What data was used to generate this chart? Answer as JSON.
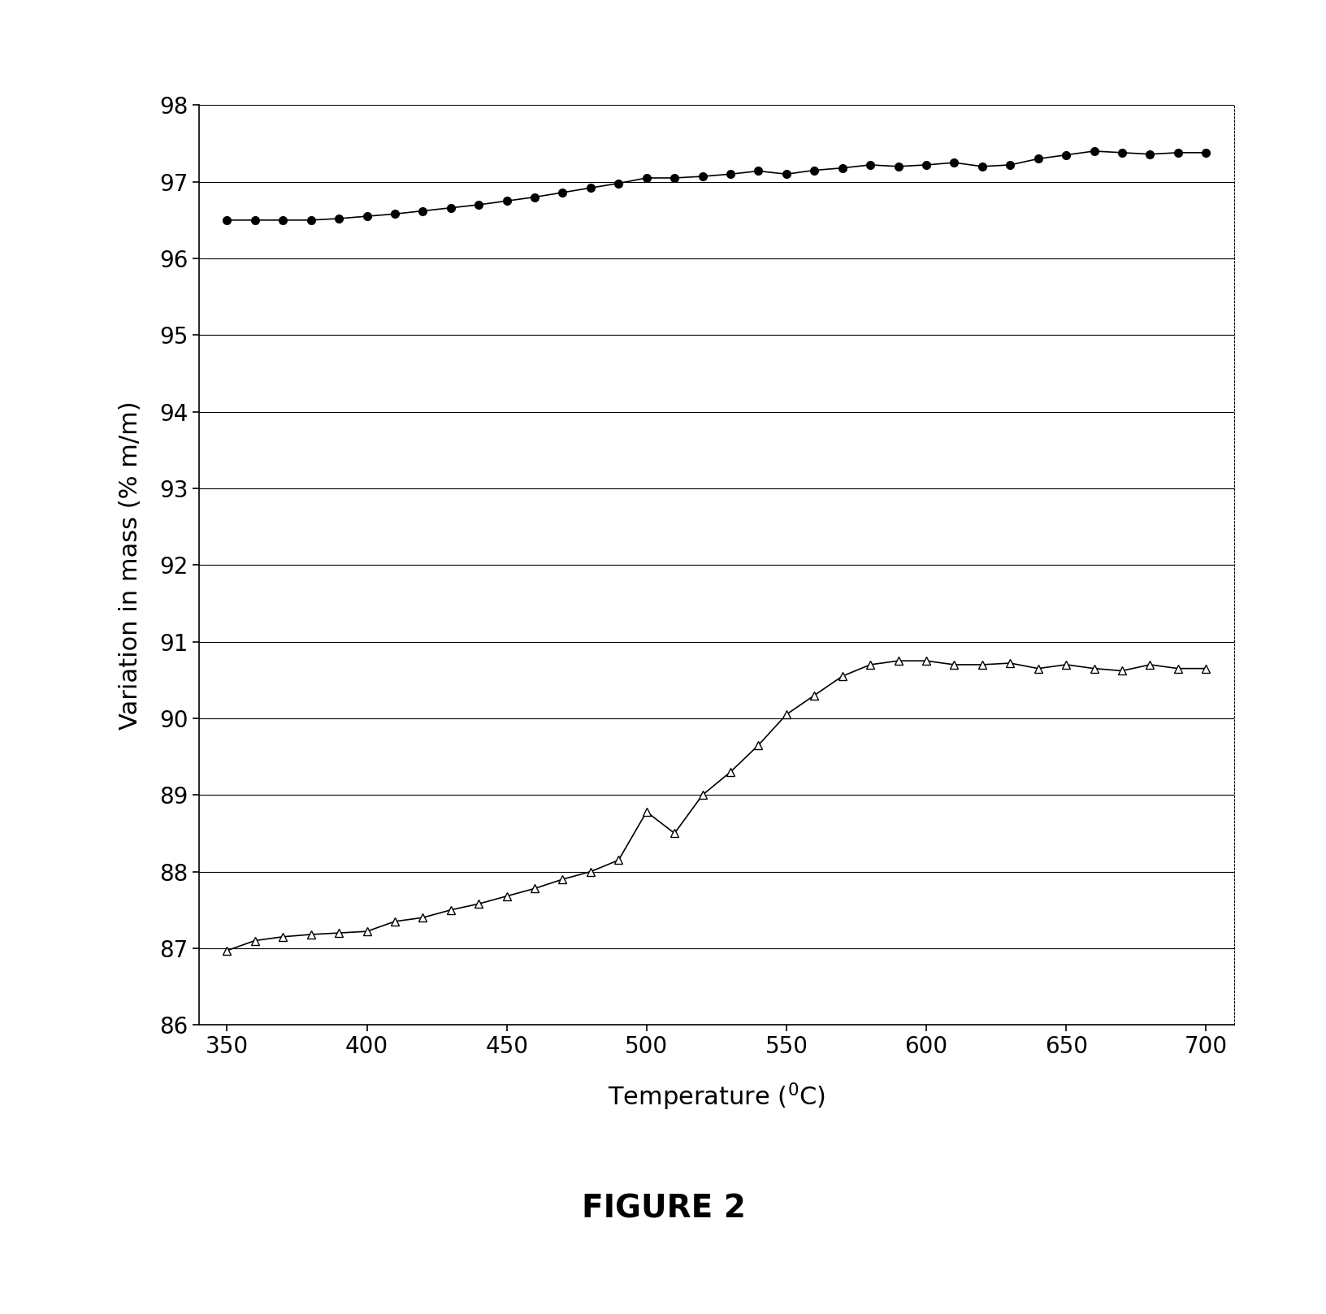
{
  "title": "FIGURE 2",
  "xlabel": "Temperature (°C)",
  "ylabel": "Variation in mass (% m/m)",
  "xlim": [
    340,
    710
  ],
  "ylim": [
    86,
    98
  ],
  "xticks": [
    350,
    400,
    450,
    500,
    550,
    600,
    650,
    700
  ],
  "yticks": [
    86,
    87,
    88,
    89,
    90,
    91,
    92,
    93,
    94,
    95,
    96,
    97,
    98
  ],
  "background_color": "#ffffff",
  "series1_x": [
    350,
    360,
    370,
    380,
    390,
    400,
    410,
    420,
    430,
    440,
    450,
    460,
    470,
    480,
    490,
    500,
    510,
    520,
    530,
    540,
    550,
    560,
    570,
    580,
    590,
    600,
    610,
    620,
    630,
    640,
    650,
    660,
    670,
    680,
    690,
    700
  ],
  "series1_y": [
    96.5,
    96.5,
    96.5,
    96.5,
    96.52,
    96.55,
    96.58,
    96.62,
    96.66,
    96.7,
    96.75,
    96.8,
    96.86,
    96.92,
    96.98,
    97.05,
    97.05,
    97.07,
    97.1,
    97.14,
    97.1,
    97.15,
    97.18,
    97.22,
    97.2,
    97.22,
    97.25,
    97.2,
    97.22,
    97.3,
    97.35,
    97.4,
    97.38,
    97.36,
    97.38,
    97.38
  ],
  "series2_x": [
    350,
    360,
    370,
    380,
    390,
    400,
    410,
    420,
    430,
    440,
    450,
    460,
    470,
    480,
    490,
    500,
    510,
    520,
    530,
    540,
    550,
    560,
    570,
    580,
    590,
    600,
    610,
    620,
    630,
    640,
    650,
    660,
    670,
    680,
    690,
    700
  ],
  "series2_y": [
    86.97,
    87.1,
    87.15,
    87.18,
    87.2,
    87.22,
    87.35,
    87.4,
    87.5,
    87.58,
    87.68,
    87.78,
    87.9,
    88.0,
    88.15,
    88.78,
    88.5,
    89.0,
    89.3,
    89.65,
    90.05,
    90.3,
    90.55,
    90.7,
    90.75,
    90.75,
    90.7,
    90.7,
    90.72,
    90.65,
    90.7,
    90.65,
    90.62,
    90.7,
    90.65,
    90.65
  ],
  "series1_color": "#000000",
  "series2_color": "#000000",
  "linewidth": 1.2,
  "markersize1": 7,
  "markersize2": 7
}
